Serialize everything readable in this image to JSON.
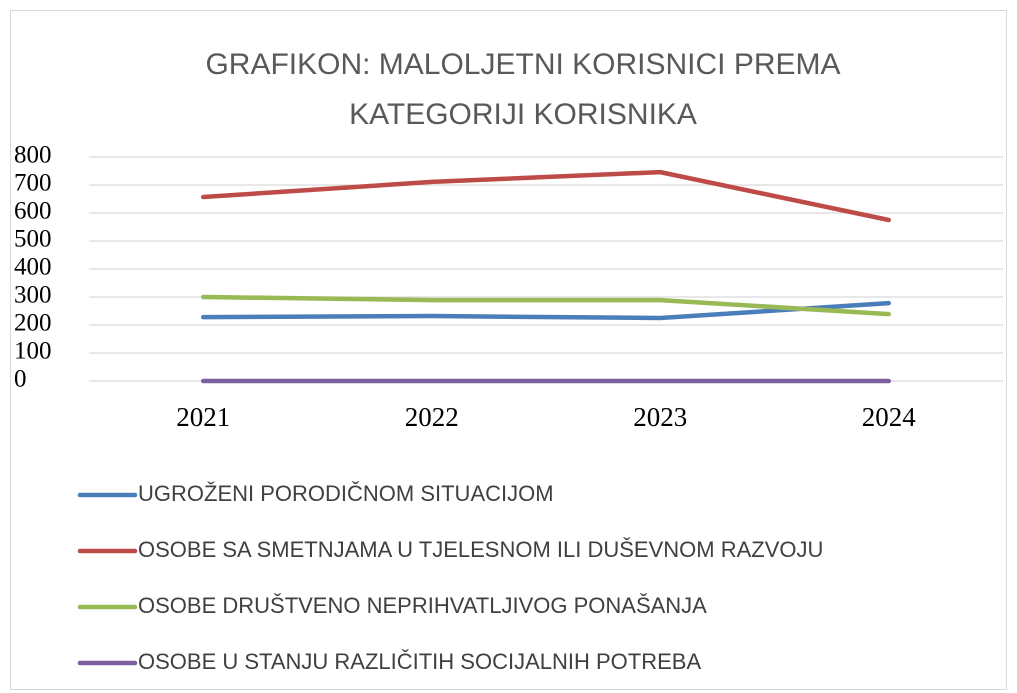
{
  "chart_data": {
    "type": "line",
    "title": "GRAFIKON: MALOLJETNI KORISNICI PREMA KATEGORIJI KORISNIKA",
    "categories": [
      "2021",
      "2022",
      "2023",
      "2024"
    ],
    "series": [
      {
        "name": "UGROŽENI PORODIČNOM SITUACIJOM",
        "color": "#4a7ebb",
        "values": [
          228,
          232,
          225,
          278
        ]
      },
      {
        "name": "OSOBE SA SMETNJAMA  U TJELESNOM ILI DUŠEVNOM RAZVOJU",
        "color": "#be4b48",
        "values": [
          657,
          711,
          746,
          575
        ]
      },
      {
        "name": "OSOBE DRUŠTVENO NEPRIHVATLJIVOG PONAŠANJA",
        "color": "#98b954",
        "values": [
          300,
          289,
          289,
          239
        ]
      },
      {
        "name": "OSOBE U STANJU RAZLIČITIH SOCIJALNIH POTREBA",
        "color": "#7d60a0",
        "values": [
          0,
          0,
          0,
          0
        ]
      }
    ],
    "ylim": [
      0,
      800
    ],
    "yticks": [
      0,
      100,
      200,
      300,
      400,
      500,
      600,
      700,
      800
    ],
    "grid": true,
    "legend": "bottom"
  }
}
